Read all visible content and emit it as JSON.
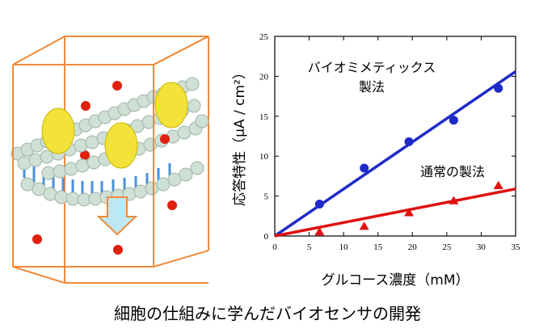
{
  "caption": "細胞の仕組みに学んだバイオセンサの開発",
  "illustration": {
    "label": "membrane-sensor-illustration"
  },
  "colors": {
    "biomimetic": "#1f2bc8",
    "conventional": "#e01010",
    "box": "#f08a3a",
    "sphere": "#e0200f",
    "enzyme": "#f2e23a",
    "lipid": "#c9d9cf",
    "arrow": "#bde8f3"
  },
  "chart_data": {
    "type": "scatter",
    "xlabel": "グルコース濃度（mM）",
    "ylabel": "応答特性（μA / cm²）",
    "xlim": [
      0,
      35
    ],
    "ylim": [
      0,
      25
    ],
    "xticks": [
      0,
      5,
      10,
      15,
      20,
      25,
      30,
      35
    ],
    "yticks": [
      0,
      5,
      10,
      15,
      20,
      25
    ],
    "series": [
      {
        "name": "バイオミメティックス製法",
        "name_line1": "バイオミメティックス",
        "name_line2": "製法",
        "marker": "circle",
        "color": "#1f2bc8",
        "points": [
          [
            6.5,
            4.0
          ],
          [
            13.0,
            8.5
          ],
          [
            19.5,
            11.8
          ],
          [
            26.0,
            14.5
          ],
          [
            32.5,
            18.5
          ]
        ],
        "fit": [
          [
            0,
            0
          ],
          [
            35,
            20.6
          ]
        ]
      },
      {
        "name": "通常の製法",
        "marker": "triangle",
        "color": "#e01010",
        "points": [
          [
            6.5,
            0.5
          ],
          [
            13.0,
            1.2
          ],
          [
            19.5,
            2.9
          ],
          [
            26.0,
            4.4
          ],
          [
            32.5,
            6.3
          ]
        ],
        "fit": [
          [
            0,
            0
          ],
          [
            35,
            5.9
          ]
        ]
      }
    ]
  }
}
